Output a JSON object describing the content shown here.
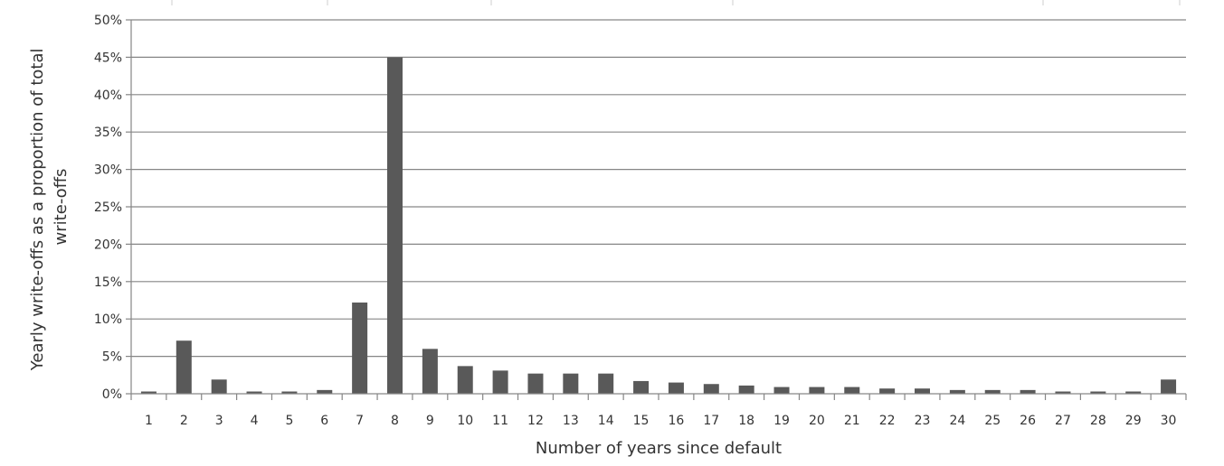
{
  "chart_data": {
    "type": "bar",
    "title": "",
    "xlabel": "Number of years since default",
    "ylabel_lines": [
      "Yearly write-offs as a proportion of total",
      "write-offs"
    ],
    "categories": [
      "1",
      "2",
      "3",
      "4",
      "5",
      "6",
      "7",
      "8",
      "9",
      "10",
      "11",
      "12",
      "13",
      "14",
      "15",
      "16",
      "17",
      "18",
      "19",
      "20",
      "21",
      "22",
      "23",
      "24",
      "25",
      "26",
      "27",
      "28",
      "29",
      "30"
    ],
    "values": [
      0.3,
      7.1,
      1.9,
      0.3,
      0.3,
      0.5,
      12.2,
      45.0,
      6.0,
      3.7,
      3.1,
      2.7,
      2.7,
      2.7,
      1.7,
      1.5,
      1.3,
      1.1,
      0.9,
      0.9,
      0.9,
      0.7,
      0.7,
      0.5,
      0.5,
      0.5,
      0.3,
      0.3,
      0.3,
      1.9
    ],
    "ylim": [
      0,
      50
    ],
    "ytick_labels": [
      "0%",
      "5%",
      "10%",
      "15%",
      "20%",
      "25%",
      "30%",
      "35%",
      "40%",
      "45%",
      "50%"
    ],
    "grid": true,
    "bar_color": "#595959",
    "grid_color": "#868686"
  }
}
